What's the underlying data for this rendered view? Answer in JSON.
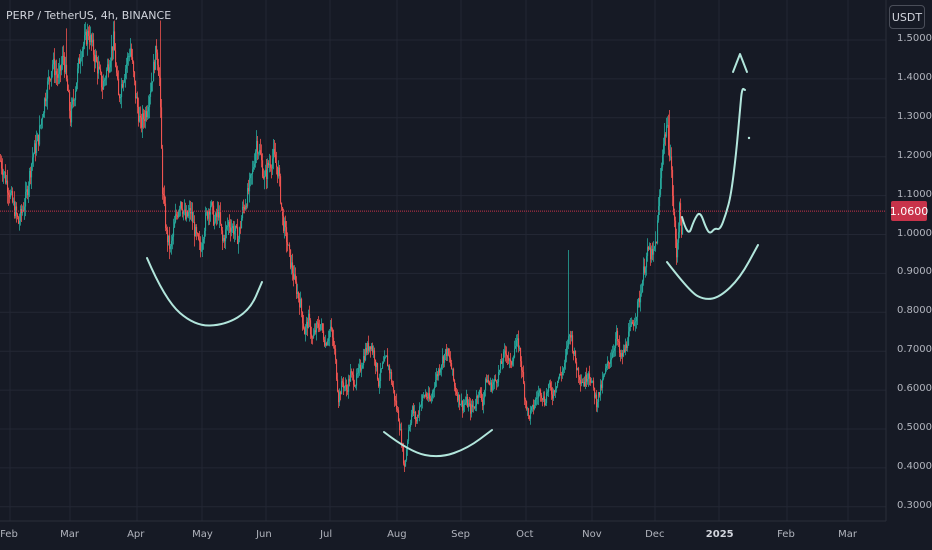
{
  "symbol_title": "PERP / TetherUS, 4h, BINANCE",
  "currency": "USDT",
  "last_price": "1.0600",
  "colors": {
    "background": "#161a25",
    "grid": "#232734",
    "up": "#26a69a",
    "down": "#ef5350",
    "price_line": "#c8334a",
    "drawing": "#b2e6dc"
  },
  "chart_data": {
    "type": "candlestick",
    "title": "PERP / TetherUS, 4h, BINANCE",
    "ylim": [
      0.28,
      1.57
    ],
    "y_ticks": [
      "1.5000",
      "1.4000",
      "1.3000",
      "1.2000",
      "1.1000",
      "1.0000",
      "0.9000",
      "0.8000",
      "0.7000",
      "0.6000",
      "0.5000",
      "0.4000",
      "0.3000"
    ],
    "x_ticks": [
      "Feb",
      "Mar",
      "Apr",
      "May",
      "Jun",
      "Jul",
      "Aug",
      "Sep",
      "Oct",
      "Nov",
      "Dec",
      "2025",
      "Feb",
      "Mar"
    ],
    "last_price_line": 1.06,
    "price_path": [
      [
        0,
        1.19
      ],
      [
        10,
        1.1
      ],
      [
        18,
        1.03
      ],
      [
        25,
        1.09
      ],
      [
        32,
        1.2
      ],
      [
        38,
        1.25
      ],
      [
        45,
        1.36
      ],
      [
        52,
        1.44
      ],
      [
        58,
        1.4
      ],
      [
        63,
        1.46
      ],
      [
        70,
        1.3
      ],
      [
        75,
        1.38
      ],
      [
        80,
        1.47
      ],
      [
        88,
        1.52
      ],
      [
        95,
        1.45
      ],
      [
        102,
        1.38
      ],
      [
        108,
        1.44
      ],
      [
        113,
        1.5
      ],
      [
        118,
        1.35
      ],
      [
        124,
        1.42
      ],
      [
        130,
        1.48
      ],
      [
        135,
        1.36
      ],
      [
        140,
        1.28
      ],
      [
        146,
        1.32
      ],
      [
        152,
        1.41
      ],
      [
        156,
        1.48
      ],
      [
        159,
        1.4
      ],
      [
        162,
        1.12
      ],
      [
        166,
        1.0
      ],
      [
        170,
        0.96
      ],
      [
        175,
        1.04
      ],
      [
        180,
        1.09
      ],
      [
        185,
        1.04
      ],
      [
        190,
        1.06
      ],
      [
        195,
        1.0
      ],
      [
        200,
        0.96
      ],
      [
        205,
        1.04
      ],
      [
        210,
        1.08
      ],
      [
        214,
        1.03
      ],
      [
        218,
        1.06
      ],
      [
        222,
        0.98
      ],
      [
        228,
        1.03
      ],
      [
        234,
        1.01
      ],
      [
        238,
        0.99
      ],
      [
        242,
        1.06
      ],
      [
        247,
        1.1
      ],
      [
        252,
        1.16
      ],
      [
        256,
        1.24
      ],
      [
        260,
        1.2
      ],
      [
        264,
        1.14
      ],
      [
        268,
        1.18
      ],
      [
        273,
        1.2
      ],
      [
        278,
        1.16
      ],
      [
        282,
        1.04
      ],
      [
        286,
        0.99
      ],
      [
        290,
        0.93
      ],
      [
        295,
        0.87
      ],
      [
        300,
        0.82
      ],
      [
        304,
        0.75
      ],
      [
        308,
        0.78
      ],
      [
        312,
        0.73
      ],
      [
        316,
        0.76
      ],
      [
        320,
        0.77
      ],
      [
        325,
        0.72
      ],
      [
        330,
        0.76
      ],
      [
        334,
        0.7
      ],
      [
        338,
        0.58
      ],
      [
        342,
        0.62
      ],
      [
        346,
        0.6
      ],
      [
        350,
        0.64
      ],
      [
        355,
        0.62
      ],
      [
        360,
        0.66
      ],
      [
        365,
        0.7
      ],
      [
        370,
        0.72
      ],
      [
        374,
        0.69
      ],
      [
        378,
        0.62
      ],
      [
        382,
        0.66
      ],
      [
        386,
        0.68
      ],
      [
        390,
        0.64
      ],
      [
        394,
        0.58
      ],
      [
        398,
        0.53
      ],
      [
        401,
        0.47
      ],
      [
        404,
        0.4
      ],
      [
        408,
        0.5
      ],
      [
        412,
        0.55
      ],
      [
        416,
        0.52
      ],
      [
        420,
        0.57
      ],
      [
        425,
        0.59
      ],
      [
        430,
        0.57
      ],
      [
        434,
        0.62
      ],
      [
        438,
        0.65
      ],
      [
        442,
        0.68
      ],
      [
        446,
        0.7
      ],
      [
        450,
        0.67
      ],
      [
        454,
        0.61
      ],
      [
        458,
        0.58
      ],
      [
        462,
        0.56
      ],
      [
        466,
        0.57
      ],
      [
        470,
        0.55
      ],
      [
        474,
        0.56
      ],
      [
        478,
        0.6
      ],
      [
        482,
        0.57
      ],
      [
        486,
        0.63
      ],
      [
        490,
        0.61
      ],
      [
        494,
        0.62
      ],
      [
        498,
        0.64
      ],
      [
        502,
        0.68
      ],
      [
        506,
        0.7
      ],
      [
        510,
        0.66
      ],
      [
        514,
        0.71
      ],
      [
        518,
        0.72
      ],
      [
        521,
        0.66
      ],
      [
        524,
        0.59
      ],
      [
        528,
        0.53
      ],
      [
        532,
        0.55
      ],
      [
        536,
        0.58
      ],
      [
        540,
        0.6
      ],
      [
        544,
        0.57
      ],
      [
        548,
        0.61
      ],
      [
        552,
        0.59
      ],
      [
        556,
        0.62
      ],
      [
        560,
        0.64
      ],
      [
        564,
        0.66
      ],
      [
        567,
        0.72
      ],
      [
        570,
        0.75
      ],
      [
        573,
        0.7
      ],
      [
        576,
        0.66
      ],
      [
        580,
        0.63
      ],
      [
        584,
        0.62
      ],
      [
        588,
        0.65
      ],
      [
        592,
        0.61
      ],
      [
        596,
        0.57
      ],
      [
        600,
        0.6
      ],
      [
        604,
        0.64
      ],
      [
        608,
        0.67
      ],
      [
        612,
        0.7
      ],
      [
        616,
        0.74
      ],
      [
        620,
        0.68
      ],
      [
        624,
        0.7
      ],
      [
        628,
        0.74
      ],
      [
        632,
        0.77
      ],
      [
        636,
        0.8
      ],
      [
        640,
        0.85
      ],
      [
        644,
        0.92
      ],
      [
        648,
        0.96
      ],
      [
        652,
        0.94
      ],
      [
        656,
        0.99
      ],
      [
        659,
        1.1
      ],
      [
        662,
        1.22
      ],
      [
        666,
        1.28
      ],
      [
        670,
        1.2
      ],
      [
        673,
        1.06
      ],
      [
        676,
        0.95
      ],
      [
        679,
        1.06
      ],
      [
        682,
        1.0
      ]
    ],
    "spikes": [
      [
        66,
        1.53
      ],
      [
        160,
        1.55
      ],
      [
        568,
        0.96
      ],
      [
        669,
        1.32
      ]
    ],
    "drawings": [
      [
        [
          147,
          258
        ],
        [
          165,
          300
        ],
        [
          195,
          326
        ],
        [
          225,
          325
        ],
        [
          250,
          310
        ],
        [
          262,
          282
        ]
      ],
      [
        [
          384,
          432
        ],
        [
          410,
          452
        ],
        [
          440,
          458
        ],
        [
          468,
          448
        ],
        [
          492,
          430
        ]
      ],
      [
        [
          667,
          262
        ],
        [
          690,
          292
        ],
        [
          705,
          300
        ],
        [
          720,
          297
        ],
        [
          740,
          278
        ],
        [
          758,
          245
        ]
      ],
      [
        [
          682,
          217
        ],
        [
          688,
          238
        ],
        [
          694,
          220
        ],
        [
          700,
          211
        ],
        [
          706,
          228
        ],
        [
          710,
          234
        ],
        [
          715,
          228
        ],
        [
          720,
          230
        ],
        [
          726,
          214
        ],
        [
          731,
          195
        ],
        [
          736,
          155
        ],
        [
          740,
          110
        ],
        [
          742,
          88
        ],
        [
          745,
          90
        ]
      ],
      [
        [
          733,
          72
        ],
        [
          740,
          54
        ],
        [
          747,
          72
        ]
      ]
    ]
  }
}
